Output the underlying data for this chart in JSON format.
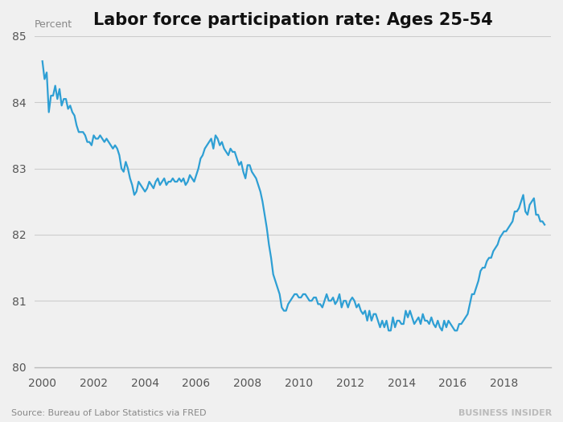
{
  "title": "Labor force participation rate: Ages 25-54",
  "ylabel": "Percent",
  "source_text": "Source: Bureau of Labor Statistics via FRED",
  "watermark": "BUSINESS INSIDER",
  "line_color": "#2e9fd4",
  "background_color": "#f0f0f0",
  "plot_bg_color": "#f0f0f0",
  "ylim": [
    80,
    85
  ],
  "yticks": [
    80,
    81,
    82,
    83,
    84,
    85
  ],
  "xlim_start": 1999.7,
  "xlim_end": 2019.83,
  "xticks": [
    2000,
    2002,
    2004,
    2006,
    2008,
    2010,
    2012,
    2014,
    2016,
    2018
  ],
  "line_width": 1.6,
  "data": [
    [
      2000.0,
      84.62
    ],
    [
      2000.083,
      84.35
    ],
    [
      2000.167,
      84.45
    ],
    [
      2000.25,
      83.85
    ],
    [
      2000.333,
      84.1
    ],
    [
      2000.417,
      84.1
    ],
    [
      2000.5,
      84.25
    ],
    [
      2000.583,
      84.05
    ],
    [
      2000.667,
      84.2
    ],
    [
      2000.75,
      83.95
    ],
    [
      2000.833,
      84.05
    ],
    [
      2000.917,
      84.05
    ],
    [
      2001.0,
      83.9
    ],
    [
      2001.083,
      83.95
    ],
    [
      2001.167,
      83.85
    ],
    [
      2001.25,
      83.8
    ],
    [
      2001.333,
      83.65
    ],
    [
      2001.417,
      83.55
    ],
    [
      2001.5,
      83.55
    ],
    [
      2001.583,
      83.55
    ],
    [
      2001.667,
      83.5
    ],
    [
      2001.75,
      83.4
    ],
    [
      2001.833,
      83.4
    ],
    [
      2001.917,
      83.35
    ],
    [
      2002.0,
      83.5
    ],
    [
      2002.083,
      83.45
    ],
    [
      2002.167,
      83.45
    ],
    [
      2002.25,
      83.5
    ],
    [
      2002.333,
      83.45
    ],
    [
      2002.417,
      83.4
    ],
    [
      2002.5,
      83.45
    ],
    [
      2002.583,
      83.4
    ],
    [
      2002.667,
      83.35
    ],
    [
      2002.75,
      83.3
    ],
    [
      2002.833,
      83.35
    ],
    [
      2002.917,
      83.3
    ],
    [
      2003.0,
      83.2
    ],
    [
      2003.083,
      83.0
    ],
    [
      2003.167,
      82.95
    ],
    [
      2003.25,
      83.1
    ],
    [
      2003.333,
      83.0
    ],
    [
      2003.417,
      82.85
    ],
    [
      2003.5,
      82.75
    ],
    [
      2003.583,
      82.6
    ],
    [
      2003.667,
      82.65
    ],
    [
      2003.75,
      82.8
    ],
    [
      2003.833,
      82.75
    ],
    [
      2003.917,
      82.7
    ],
    [
      2004.0,
      82.65
    ],
    [
      2004.083,
      82.7
    ],
    [
      2004.167,
      82.8
    ],
    [
      2004.25,
      82.75
    ],
    [
      2004.333,
      82.7
    ],
    [
      2004.417,
      82.8
    ],
    [
      2004.5,
      82.85
    ],
    [
      2004.583,
      82.75
    ],
    [
      2004.667,
      82.8
    ],
    [
      2004.75,
      82.85
    ],
    [
      2004.833,
      82.75
    ],
    [
      2004.917,
      82.8
    ],
    [
      2005.0,
      82.8
    ],
    [
      2005.083,
      82.85
    ],
    [
      2005.167,
      82.8
    ],
    [
      2005.25,
      82.8
    ],
    [
      2005.333,
      82.85
    ],
    [
      2005.417,
      82.8
    ],
    [
      2005.5,
      82.85
    ],
    [
      2005.583,
      82.75
    ],
    [
      2005.667,
      82.8
    ],
    [
      2005.75,
      82.9
    ],
    [
      2005.833,
      82.85
    ],
    [
      2005.917,
      82.8
    ],
    [
      2006.0,
      82.9
    ],
    [
      2006.083,
      83.0
    ],
    [
      2006.167,
      83.15
    ],
    [
      2006.25,
      83.2
    ],
    [
      2006.333,
      83.3
    ],
    [
      2006.417,
      83.35
    ],
    [
      2006.5,
      83.4
    ],
    [
      2006.583,
      83.45
    ],
    [
      2006.667,
      83.3
    ],
    [
      2006.75,
      83.5
    ],
    [
      2006.833,
      83.45
    ],
    [
      2006.917,
      83.35
    ],
    [
      2007.0,
      83.4
    ],
    [
      2007.083,
      83.3
    ],
    [
      2007.167,
      83.25
    ],
    [
      2007.25,
      83.2
    ],
    [
      2007.333,
      83.3
    ],
    [
      2007.417,
      83.25
    ],
    [
      2007.5,
      83.25
    ],
    [
      2007.583,
      83.15
    ],
    [
      2007.667,
      83.05
    ],
    [
      2007.75,
      83.1
    ],
    [
      2007.833,
      82.95
    ],
    [
      2007.917,
      82.85
    ],
    [
      2008.0,
      83.05
    ],
    [
      2008.083,
      83.05
    ],
    [
      2008.167,
      82.95
    ],
    [
      2008.25,
      82.9
    ],
    [
      2008.333,
      82.85
    ],
    [
      2008.417,
      82.75
    ],
    [
      2008.5,
      82.65
    ],
    [
      2008.583,
      82.5
    ],
    [
      2008.667,
      82.3
    ],
    [
      2008.75,
      82.1
    ],
    [
      2008.833,
      81.85
    ],
    [
      2008.917,
      81.65
    ],
    [
      2009.0,
      81.4
    ],
    [
      2009.083,
      81.3
    ],
    [
      2009.167,
      81.2
    ],
    [
      2009.25,
      81.1
    ],
    [
      2009.333,
      80.9
    ],
    [
      2009.417,
      80.85
    ],
    [
      2009.5,
      80.85
    ],
    [
      2009.583,
      80.95
    ],
    [
      2009.667,
      81.0
    ],
    [
      2009.75,
      81.05
    ],
    [
      2009.833,
      81.1
    ],
    [
      2009.917,
      81.1
    ],
    [
      2010.0,
      81.05
    ],
    [
      2010.083,
      81.05
    ],
    [
      2010.167,
      81.1
    ],
    [
      2010.25,
      81.1
    ],
    [
      2010.333,
      81.05
    ],
    [
      2010.417,
      81.0
    ],
    [
      2010.5,
      81.0
    ],
    [
      2010.583,
      81.05
    ],
    [
      2010.667,
      81.05
    ],
    [
      2010.75,
      80.95
    ],
    [
      2010.833,
      80.95
    ],
    [
      2010.917,
      80.9
    ],
    [
      2011.0,
      81.0
    ],
    [
      2011.083,
      81.1
    ],
    [
      2011.167,
      81.0
    ],
    [
      2011.25,
      81.0
    ],
    [
      2011.333,
      81.05
    ],
    [
      2011.417,
      80.95
    ],
    [
      2011.5,
      81.0
    ],
    [
      2011.583,
      81.1
    ],
    [
      2011.667,
      80.9
    ],
    [
      2011.75,
      81.0
    ],
    [
      2011.833,
      81.0
    ],
    [
      2011.917,
      80.9
    ],
    [
      2012.0,
      81.0
    ],
    [
      2012.083,
      81.05
    ],
    [
      2012.167,
      81.0
    ],
    [
      2012.25,
      80.9
    ],
    [
      2012.333,
      80.95
    ],
    [
      2012.417,
      80.85
    ],
    [
      2012.5,
      80.8
    ],
    [
      2012.583,
      80.85
    ],
    [
      2012.667,
      80.7
    ],
    [
      2012.75,
      80.85
    ],
    [
      2012.833,
      80.7
    ],
    [
      2012.917,
      80.8
    ],
    [
      2013.0,
      80.8
    ],
    [
      2013.083,
      80.7
    ],
    [
      2013.167,
      80.6
    ],
    [
      2013.25,
      80.7
    ],
    [
      2013.333,
      80.6
    ],
    [
      2013.417,
      80.7
    ],
    [
      2013.5,
      80.55
    ],
    [
      2013.583,
      80.55
    ],
    [
      2013.667,
      80.75
    ],
    [
      2013.75,
      80.6
    ],
    [
      2013.833,
      80.7
    ],
    [
      2013.917,
      80.7
    ],
    [
      2014.0,
      80.65
    ],
    [
      2014.083,
      80.65
    ],
    [
      2014.167,
      80.85
    ],
    [
      2014.25,
      80.75
    ],
    [
      2014.333,
      80.85
    ],
    [
      2014.417,
      80.75
    ],
    [
      2014.5,
      80.65
    ],
    [
      2014.583,
      80.7
    ],
    [
      2014.667,
      80.75
    ],
    [
      2014.75,
      80.65
    ],
    [
      2014.833,
      80.8
    ],
    [
      2014.917,
      80.7
    ],
    [
      2015.0,
      80.7
    ],
    [
      2015.083,
      80.65
    ],
    [
      2015.167,
      80.75
    ],
    [
      2015.25,
      80.65
    ],
    [
      2015.333,
      80.6
    ],
    [
      2015.417,
      80.7
    ],
    [
      2015.5,
      80.6
    ],
    [
      2015.583,
      80.55
    ],
    [
      2015.667,
      80.7
    ],
    [
      2015.75,
      80.6
    ],
    [
      2015.833,
      80.7
    ],
    [
      2015.917,
      80.65
    ],
    [
      2016.0,
      80.6
    ],
    [
      2016.083,
      80.55
    ],
    [
      2016.167,
      80.55
    ],
    [
      2016.25,
      80.65
    ],
    [
      2016.333,
      80.65
    ],
    [
      2016.417,
      80.7
    ],
    [
      2016.5,
      80.75
    ],
    [
      2016.583,
      80.8
    ],
    [
      2016.667,
      80.95
    ],
    [
      2016.75,
      81.1
    ],
    [
      2016.833,
      81.1
    ],
    [
      2016.917,
      81.2
    ],
    [
      2017.0,
      81.3
    ],
    [
      2017.083,
      81.45
    ],
    [
      2017.167,
      81.5
    ],
    [
      2017.25,
      81.5
    ],
    [
      2017.333,
      81.6
    ],
    [
      2017.417,
      81.65
    ],
    [
      2017.5,
      81.65
    ],
    [
      2017.583,
      81.75
    ],
    [
      2017.667,
      81.8
    ],
    [
      2017.75,
      81.85
    ],
    [
      2017.833,
      81.95
    ],
    [
      2017.917,
      82.0
    ],
    [
      2018.0,
      82.05
    ],
    [
      2018.083,
      82.05
    ],
    [
      2018.167,
      82.1
    ],
    [
      2018.25,
      82.15
    ],
    [
      2018.333,
      82.2
    ],
    [
      2018.417,
      82.35
    ],
    [
      2018.5,
      82.35
    ],
    [
      2018.583,
      82.4
    ],
    [
      2018.667,
      82.5
    ],
    [
      2018.75,
      82.6
    ],
    [
      2018.833,
      82.35
    ],
    [
      2018.917,
      82.3
    ],
    [
      2019.0,
      82.45
    ],
    [
      2019.083,
      82.5
    ],
    [
      2019.167,
      82.55
    ],
    [
      2019.25,
      82.3
    ],
    [
      2019.333,
      82.3
    ],
    [
      2019.417,
      82.2
    ],
    [
      2019.5,
      82.2
    ],
    [
      2019.583,
      82.15
    ]
  ]
}
